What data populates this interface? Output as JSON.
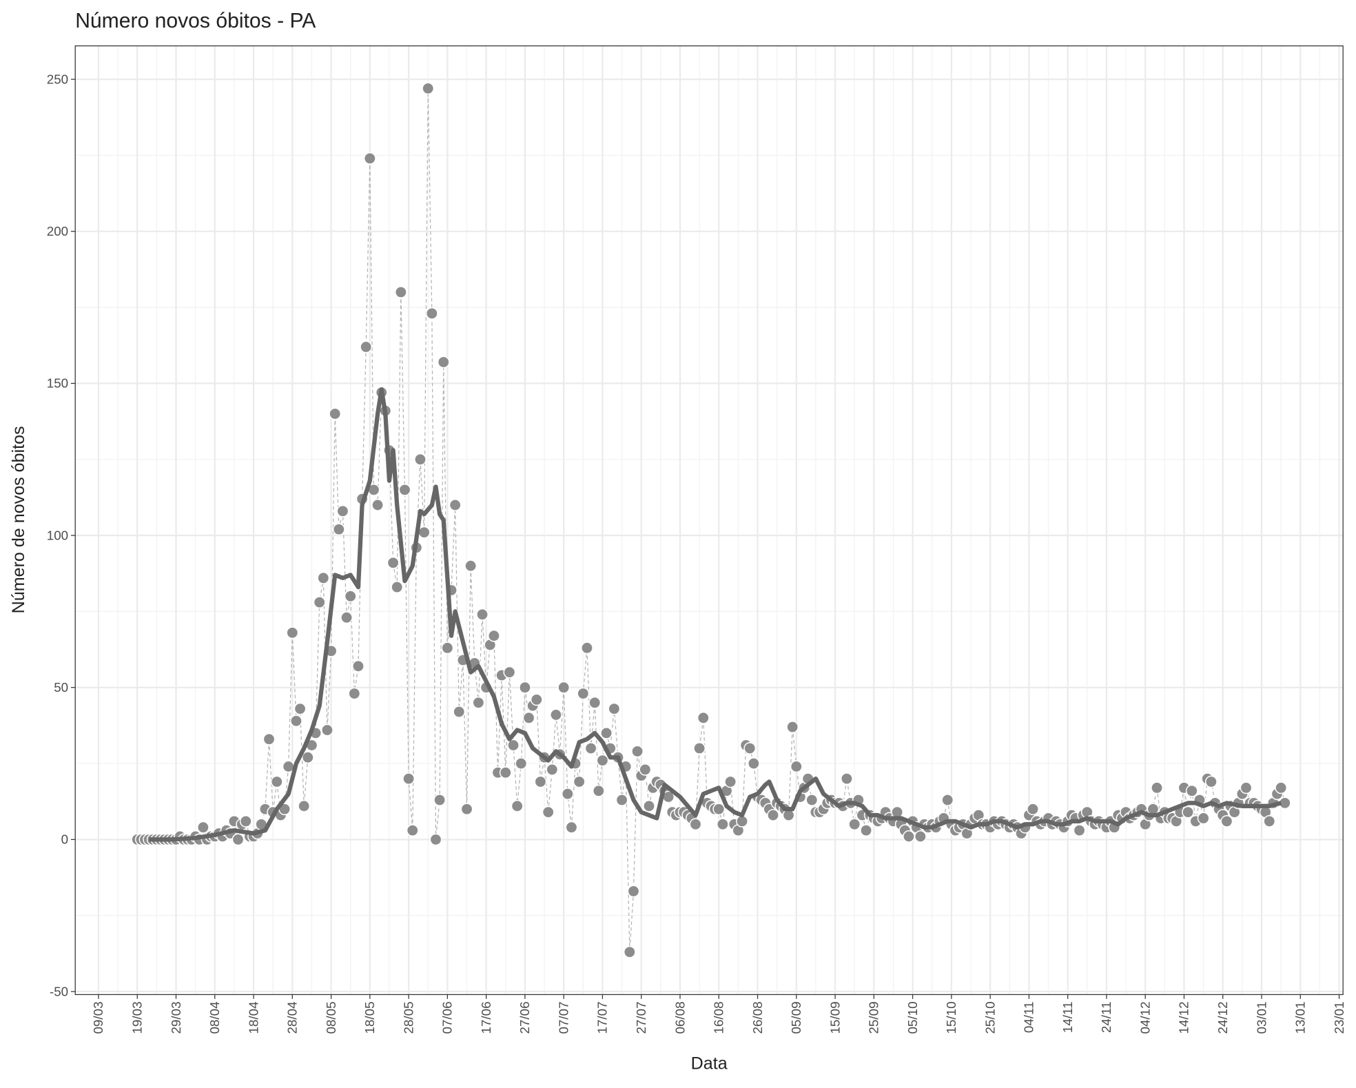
{
  "chart_data": {
    "type": "scatter",
    "title": "Número novos óbitos - PA",
    "x_label": "Data",
    "y_label": "Número de novos óbitos",
    "xlim": [
      "03/03",
      "24/01"
    ],
    "ylim": [
      -51,
      261
    ],
    "yticks": [
      -50,
      0,
      50,
      100,
      150,
      200,
      250
    ],
    "grid": true,
    "xticks": [
      "09/03",
      "19/03",
      "29/03",
      "08/04",
      "18/04",
      "28/04",
      "08/05",
      "18/05",
      "28/05",
      "07/06",
      "17/06",
      "27/06",
      "07/07",
      "17/07",
      "27/07",
      "06/08",
      "16/08",
      "26/08",
      "05/09",
      "15/09",
      "25/09",
      "05/10",
      "15/10",
      "25/10",
      "04/11",
      "14/11",
      "24/11",
      "04/12",
      "14/12",
      "24/12",
      "03/01",
      "13/01",
      "23/01"
    ],
    "series": [
      {
        "kind": "points",
        "color": "#8c8c8c",
        "x": [
          "19/03",
          "20/03",
          "21/03",
          "22/03",
          "23/03",
          "24/03",
          "25/03",
          "26/03",
          "27/03",
          "28/03",
          "29/03",
          "30/03",
          "31/03",
          "01/04",
          "02/04",
          "03/04",
          "04/04",
          "05/04",
          "06/04",
          "07/04",
          "08/04",
          "09/04",
          "10/04",
          "11/04",
          "12/04",
          "13/04",
          "14/04",
          "15/04",
          "16/04",
          "17/04",
          "18/04",
          "19/04",
          "20/04",
          "21/04",
          "22/04",
          "23/04",
          "24/04",
          "25/04",
          "26/04",
          "27/04",
          "28/04",
          "29/04",
          "30/04",
          "01/05",
          "02/05",
          "03/05",
          "04/05",
          "05/05",
          "06/05",
          "07/05",
          "08/05",
          "09/05",
          "10/05",
          "11/05",
          "12/05",
          "13/05",
          "14/05",
          "15/05",
          "16/05",
          "17/05",
          "18/05",
          "19/05",
          "20/05",
          "21/05",
          "22/05",
          "23/05",
          "24/05",
          "25/05",
          "26/05",
          "27/05",
          "28/05",
          "29/05",
          "30/05",
          "31/05",
          "01/06",
          "02/06",
          "03/06",
          "04/06",
          "05/06",
          "06/06",
          "07/06",
          "08/06",
          "09/06",
          "10/06",
          "11/06",
          "12/06",
          "13/06",
          "14/06",
          "15/06",
          "16/06",
          "17/06",
          "18/06",
          "19/06",
          "20/06",
          "21/06",
          "22/06",
          "23/06",
          "24/06",
          "25/06",
          "26/06",
          "27/06",
          "28/06",
          "29/06",
          "30/06",
          "01/07",
          "02/07",
          "03/07",
          "04/07",
          "05/07",
          "06/07",
          "07/07",
          "08/07",
          "09/07",
          "10/07",
          "11/07",
          "12/07",
          "13/07",
          "14/07",
          "15/07",
          "16/07",
          "17/07",
          "18/07",
          "19/07",
          "20/07",
          "21/07",
          "22/07",
          "23/07",
          "24/07",
          "25/07",
          "26/07",
          "27/07",
          "28/07",
          "29/07",
          "30/07",
          "31/07",
          "01/08",
          "02/08",
          "03/08",
          "04/08",
          "05/08",
          "06/08",
          "07/08",
          "08/08",
          "09/08",
          "10/08",
          "11/08",
          "12/08",
          "13/08",
          "14/08",
          "15/08",
          "16/08",
          "17/08",
          "18/08",
          "19/08",
          "20/08",
          "21/08",
          "22/08",
          "23/08",
          "24/08",
          "25/08",
          "26/08",
          "27/08",
          "28/08",
          "29/08",
          "30/08",
          "31/08",
          "01/09",
          "02/09",
          "03/09",
          "04/09",
          "05/09",
          "06/09",
          "07/09",
          "08/09",
          "09/09",
          "10/09",
          "11/09",
          "12/09",
          "13/09",
          "14/09",
          "15/09",
          "16/09",
          "17/09",
          "18/09",
          "19/09",
          "20/09",
          "21/09",
          "22/09",
          "23/09",
          "24/09",
          "25/09",
          "26/09",
          "27/09",
          "28/09",
          "29/09",
          "30/09",
          "01/10",
          "02/10",
          "03/10",
          "04/10",
          "05/10",
          "06/10",
          "07/10",
          "08/10",
          "09/10",
          "10/10",
          "11/10",
          "12/10",
          "13/10",
          "14/10",
          "15/10",
          "16/10",
          "17/10",
          "18/10",
          "19/10",
          "20/10",
          "21/10",
          "22/10",
          "23/10",
          "24/10",
          "25/10",
          "26/10",
          "27/10",
          "28/10",
          "29/10",
          "30/10",
          "31/10",
          "01/11",
          "02/11",
          "03/11",
          "04/11",
          "05/11",
          "06/11",
          "07/11",
          "08/11",
          "09/11",
          "10/11",
          "11/11",
          "12/11",
          "13/11",
          "14/11",
          "15/11",
          "16/11",
          "17/11",
          "18/11",
          "19/11",
          "20/11",
          "21/11",
          "22/11",
          "23/11",
          "24/11",
          "25/11",
          "26/11",
          "27/11",
          "28/11",
          "29/11",
          "30/11",
          "01/12",
          "02/12",
          "03/12",
          "04/12",
          "05/12",
          "06/12",
          "07/12",
          "08/12",
          "09/12",
          "10/12",
          "11/12",
          "12/12",
          "13/12",
          "14/12",
          "15/12",
          "16/12",
          "17/12",
          "18/12",
          "19/12",
          "20/12",
          "21/12",
          "22/12",
          "23/12",
          "24/12",
          "25/12",
          "26/12",
          "27/12",
          "28/12",
          "29/12",
          "30/12",
          "31/12",
          "01/01",
          "02/01",
          "03/01",
          "04/01",
          "05/01",
          "06/01",
          "07/01",
          "08/01",
          "09/01"
        ],
        "values": [
          0,
          0,
          0,
          0,
          0,
          0,
          0,
          0,
          0,
          0,
          0,
          1,
          0,
          0,
          0,
          1,
          0,
          4,
          0,
          1,
          1,
          2,
          1,
          3,
          2,
          6,
          0,
          5,
          6,
          1,
          1,
          2,
          5,
          10,
          33,
          9,
          19,
          8,
          10,
          24,
          68,
          39,
          43,
          11,
          27,
          31,
          35,
          78,
          86,
          36,
          62,
          140,
          102,
          108,
          73,
          80,
          48,
          57,
          112,
          162,
          224,
          115,
          110,
          147,
          141,
          128,
          91,
          83,
          180,
          115,
          20,
          3,
          96,
          125,
          101,
          247,
          173,
          0,
          13,
          157,
          63,
          82,
          110,
          42,
          59,
          10,
          90,
          58,
          45,
          74,
          50,
          64,
          67,
          22,
          54,
          22,
          55,
          31,
          11,
          25,
          50,
          40,
          44,
          46,
          19,
          27,
          9,
          23,
          41,
          28,
          50,
          15,
          4,
          25,
          19,
          48,
          63,
          30,
          45,
          16,
          26,
          35,
          30,
          43,
          27,
          13,
          24,
          -37,
          -17,
          29,
          21,
          23,
          11,
          17,
          19,
          18,
          16,
          14,
          9,
          8,
          9,
          9,
          8,
          7,
          5,
          30,
          40,
          12,
          11,
          10,
          10,
          5,
          16,
          19,
          5,
          3,
          6,
          31,
          30,
          25,
          14,
          13,
          12,
          10,
          8,
          12,
          11,
          10,
          8,
          37,
          24,
          14,
          17,
          20,
          13,
          9,
          9,
          10,
          12,
          13,
          12,
          12,
          11,
          20,
          12,
          5,
          13,
          8,
          3,
          8,
          7,
          6,
          7,
          9,
          7,
          6,
          9,
          5,
          3,
          1,
          6,
          4,
          1,
          5,
          4,
          5,
          4,
          6,
          7,
          13,
          5,
          3,
          4,
          5,
          2,
          5,
          7,
          8,
          5,
          5,
          4,
          6,
          5,
          6,
          5,
          4,
          5,
          4,
          2,
          4,
          8,
          10,
          6,
          5,
          6,
          7,
          5,
          6,
          5,
          4,
          6,
          8,
          7,
          3,
          8,
          9,
          6,
          5,
          6,
          5,
          4,
          6,
          4,
          8,
          7,
          9,
          7,
          8,
          9,
          10,
          5,
          8,
          10,
          17,
          7,
          9,
          7,
          7,
          6,
          9,
          17,
          9,
          16,
          6,
          13,
          7,
          20,
          19,
          12,
          10,
          8,
          6,
          11,
          9,
          12,
          15,
          17,
          12,
          12,
          11,
          10,
          9,
          6,
          12,
          15,
          17,
          12
        ]
      },
      {
        "kind": "line",
        "color": "#666666",
        "x": [
          "22/03",
          "28/03",
          "03/04",
          "08/04",
          "13/04",
          "18/04",
          "21/04",
          "24/04",
          "27/04",
          "29/04",
          "01/05",
          "03/05",
          "05/05",
          "07/05",
          "09/05",
          "11/05",
          "13/05",
          "15/05",
          "16/05",
          "18/05",
          "20/05",
          "21/05",
          "22/05",
          "23/05",
          "24/05",
          "25/05",
          "27/05",
          "29/05",
          "31/05",
          "01/06",
          "03/06",
          "04/06",
          "05/06",
          "06/06",
          "08/06",
          "09/06",
          "11/06",
          "13/06",
          "15/06",
          "17/06",
          "19/06",
          "21/06",
          "23/06",
          "25/06",
          "27/06",
          "29/06",
          "01/07",
          "03/07",
          "05/07",
          "07/07",
          "09/07",
          "11/07",
          "13/07",
          "15/07",
          "17/07",
          "19/07",
          "21/07",
          "23/07",
          "25/07",
          "27/07",
          "29/07",
          "31/07",
          "02/08",
          "04/08",
          "06/08",
          "08/08",
          "10/08",
          "12/08",
          "14/08",
          "16/08",
          "18/08",
          "20/08",
          "22/08",
          "24/08",
          "26/08",
          "28/08",
          "29/08",
          "31/08",
          "02/09",
          "04/09",
          "06/09",
          "08/09",
          "10/09",
          "12/09",
          "14/09",
          "16/09",
          "18/09",
          "20/09",
          "22/09",
          "24/09",
          "26/09",
          "28/09",
          "30/09",
          "02/10",
          "04/10",
          "06/10",
          "08/10",
          "10/10",
          "12/10",
          "14/10",
          "16/10",
          "18/10",
          "20/10",
          "22/10",
          "24/10",
          "26/10",
          "28/10",
          "30/10",
          "01/11",
          "03/11",
          "05/11",
          "07/11",
          "09/11",
          "11/11",
          "13/11",
          "15/11",
          "17/11",
          "19/11",
          "21/11",
          "23/11",
          "25/11",
          "27/11",
          "29/11",
          "01/12",
          "03/12",
          "05/12",
          "07/12",
          "09/12",
          "11/12",
          "13/12",
          "15/12",
          "17/12",
          "19/12",
          "21/12",
          "23/12",
          "25/12",
          "29/12",
          "02/01",
          "05/01",
          "08/01"
        ],
        "values": [
          0,
          0,
          0.5,
          1.5,
          3,
          2,
          3,
          10,
          15,
          25,
          30,
          36,
          44,
          65,
          87,
          86,
          87,
          83,
          110,
          118,
          140,
          148,
          140,
          118,
          128,
          110,
          85,
          90,
          108,
          107,
          110,
          116,
          107,
          105,
          67,
          75,
          65,
          55,
          57,
          52,
          47,
          38,
          33,
          36,
          35,
          30,
          28,
          26,
          29,
          27,
          24,
          32,
          33,
          35,
          32,
          27,
          27,
          20,
          13,
          9,
          8,
          7,
          18,
          16,
          14,
          11,
          8,
          15,
          16,
          17,
          11,
          9,
          8,
          14,
          15,
          18,
          19,
          13,
          10,
          10,
          16,
          18,
          20,
          15,
          13,
          11,
          12,
          12,
          11,
          8,
          8,
          7,
          7,
          7,
          6,
          5,
          4,
          4,
          5,
          6,
          6,
          5,
          4,
          5,
          5,
          6,
          6,
          5,
          4,
          5,
          5,
          6,
          6,
          5,
          5,
          6,
          6,
          7,
          6,
          6,
          6,
          5,
          7,
          8,
          9,
          8,
          8,
          9,
          10,
          11,
          12,
          12,
          11,
          12,
          11,
          12,
          11,
          11,
          11,
          12
        ]
      }
    ]
  }
}
